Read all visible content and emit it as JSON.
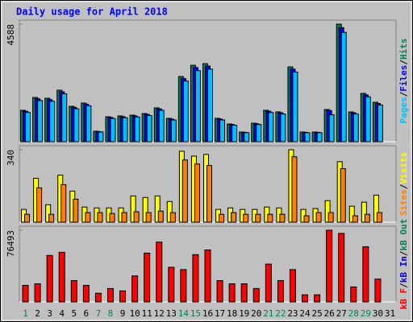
{
  "chart_data": [
    {
      "type": "bar",
      "title": "Daily usage for April 2018",
      "ylim": [
        0,
        4588
      ],
      "yticks": [
        4588
      ],
      "legend_separator": "/",
      "series": [
        {
          "name": "Hits",
          "color": "#00805c",
          "values": [
            1225,
            1727,
            1696,
            2010,
            1382,
            1508,
            408,
            973,
            1005,
            1036,
            1099,
            1319,
            911,
            2544,
            2983,
            3045,
            911,
            690,
            377,
            722,
            1225,
            1162,
            2920,
            377,
            377,
            1256,
            4588,
            1162,
            1885,
            1539,
            0
          ]
        },
        {
          "name": "Files",
          "color": "#0000ff",
          "values": [
            1188,
            1675,
            1645,
            1950,
            1341,
            1463,
            396,
            944,
            975,
            1005,
            1066,
            1279,
            884,
            2468,
            2894,
            2954,
            884,
            669,
            366,
            700,
            1188,
            1127,
            2832,
            366,
            366,
            1218,
            4450,
            1127,
            1828,
            1493,
            0
          ]
        },
        {
          "name": "Pages",
          "color": "#00c0ff",
          "values": [
            1139,
            1606,
            1577,
            1869,
            1285,
            1402,
            379,
            905,
            935,
            963,
            1022,
            1227,
            847,
            2366,
            2774,
            2832,
            847,
            642,
            351,
            671,
            1139,
            1081,
            2716,
            351,
            351,
            1050,
            4267,
            1081,
            1753,
            1431,
            0
          ]
        }
      ]
    },
    {
      "type": "bar",
      "ylim": [
        0,
        340
      ],
      "yticks": [
        340
      ],
      "legend_separator": "/",
      "series": [
        {
          "name": "Visits",
          "color": "#ffff00",
          "values": [
            60,
            206,
            82,
            221,
            146,
            71,
            67,
            67,
            67,
            123,
            116,
            123,
            97,
            333,
            310,
            318,
            60,
            67,
            60,
            60,
            71,
            67,
            340,
            60,
            64,
            101,
            284,
            75,
            94,
            127,
            0
          ]
        },
        {
          "name": "Sites",
          "color": "#ff8000",
          "values": [
            37,
            161,
            37,
            176,
            108,
            45,
            45,
            41,
            45,
            49,
            45,
            52,
            45,
            292,
            273,
            266,
            37,
            45,
            37,
            37,
            37,
            37,
            307,
            30,
            45,
            45,
            251,
            30,
            37,
            45,
            0
          ]
        }
      ]
    },
    {
      "type": "bar",
      "ylim": [
        0,
        76493
      ],
      "yticks": [
        76493
      ],
      "legend_separator": "/",
      "categories": [
        "1",
        "2",
        "3",
        "4",
        "5",
        "6",
        "7",
        "8",
        "9",
        "10",
        "11",
        "12",
        "13",
        "14",
        "15",
        "16",
        "17",
        "18",
        "19",
        "20",
        "21",
        "22",
        "23",
        "24",
        "25",
        "26",
        "27",
        "28",
        "29",
        "30",
        "31"
      ],
      "category_colors": [
        "#00805c",
        "#000000",
        "#000000",
        "#000000",
        "#000000",
        "#000000",
        "#00805c",
        "#00805c",
        "#000000",
        "#000000",
        "#000000",
        "#000000",
        "#000000",
        "#00805c",
        "#00805c",
        "#000000",
        "#000000",
        "#000000",
        "#000000",
        "#000000",
        "#00805c",
        "#00805c",
        "#000000",
        "#000000",
        "#000000",
        "#000000",
        "#000000",
        "#00805c",
        "#00805c",
        "#000000",
        "#000000"
      ],
      "series": [
        {
          "name": "kB F",
          "color": "#ff0000",
          "values": [
            17650,
            19330,
            49580,
            52940,
            22690,
            17650,
            9240,
            14280,
            11760,
            27730,
            52100,
            63860,
            36970,
            34450,
            50420,
            55460,
            22690,
            19330,
            19330,
            14280,
            40330,
            22690,
            34450,
            7560,
            7560,
            76493,
            73130,
            15960,
            58820,
            24370,
            0
          ]
        }
      ],
      "legend_extra": [
        {
          "name": "kB In",
          "color": "#0000ff"
        },
        {
          "name": "kB Out",
          "color": "#00805c"
        }
      ]
    }
  ]
}
